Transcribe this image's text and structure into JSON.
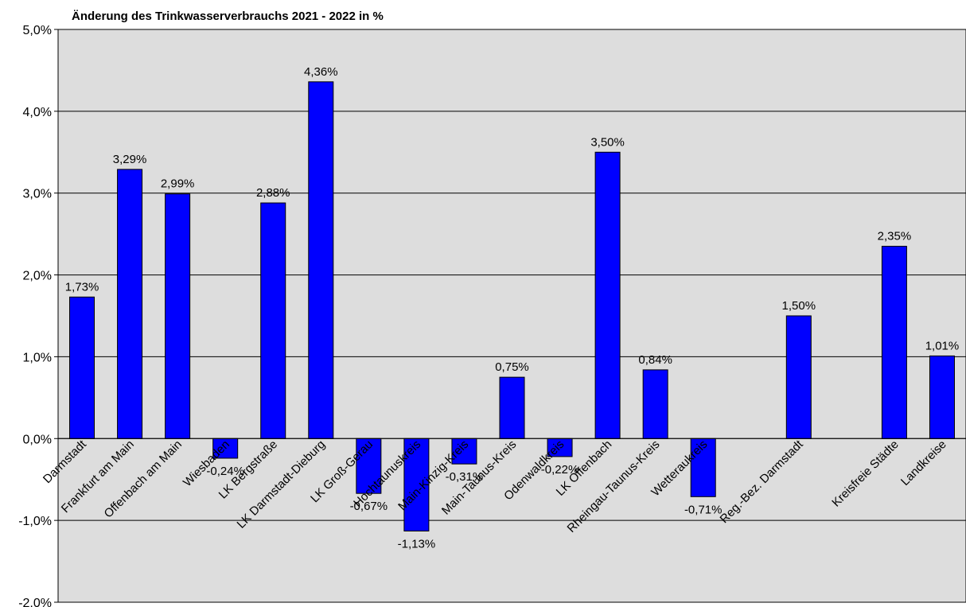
{
  "chart_data": {
    "type": "bar",
    "title": "Änderung des Trinkwasserverbrauchs 2021 - 2022 in %",
    "ylim": [
      -2.0,
      5.0
    ],
    "yticks": [
      {
        "value": 5.0,
        "label": "5,0%"
      },
      {
        "value": 4.0,
        "label": "4,0%"
      },
      {
        "value": 3.0,
        "label": "3,0%"
      },
      {
        "value": 2.0,
        "label": "2,0%"
      },
      {
        "value": 1.0,
        "label": "1,0%"
      },
      {
        "value": 0.0,
        "label": "0,0%"
      },
      {
        "value": -1.0,
        "label": "-1,0%"
      },
      {
        "value": -2.0,
        "label": "-2,0%"
      }
    ],
    "grid": true,
    "plot_background": "#dddddd",
    "bar_color": "#0000ff",
    "categories": [
      "Darmstadt",
      "Frankfurt am Main",
      "Offenbach am Main",
      "Wiesbaden",
      "LK Bergstraße",
      "LK Darmstadt-Dieburg",
      "LK Groß-Gerau",
      "Hochtaunuskreis",
      "Main-Kinzig-Kreis",
      "Main-Taunus-Kreis",
      "Odenwaldkreis",
      "LK Offenbach",
      "Rheingau-Taunus-Kreis",
      "Wetteraukreis",
      "",
      "Reg.-Bez. Darmstadt",
      "",
      "Kreisfreie Städte",
      "Landkreise"
    ],
    "values": [
      1.73,
      3.29,
      2.99,
      -0.24,
      2.88,
      4.36,
      -0.67,
      -1.13,
      -0.31,
      0.75,
      -0.22,
      3.5,
      0.84,
      -0.71,
      null,
      1.5,
      null,
      2.35,
      1.01
    ],
    "data_labels": [
      "1,73%",
      "3,29%",
      "2,99%",
      "-0,24%",
      "2,88%",
      "4,36%",
      "-0,67%",
      "-1,13%",
      "-0,31%",
      "0,75%",
      "-0,22%",
      "3,50%",
      "0,84%",
      "-0,71%",
      "",
      "1,50%",
      "",
      "2,35%",
      "1,01%"
    ]
  }
}
